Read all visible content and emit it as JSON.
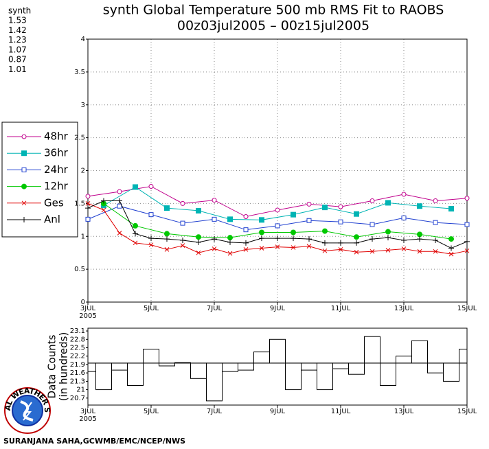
{
  "chart_data": [
    {
      "type": "line",
      "title": "synth Global Temperature 500 mb RMS Fit to RAOBS",
      "subtitle": "00z03jul2005 – 00z15jul2005",
      "model": "synth",
      "x_year_label": "2005",
      "xlim": [
        0,
        12
      ],
      "xticks": [
        {
          "value": 0,
          "label": "3JUL"
        },
        {
          "value": 2,
          "label": "5JUL"
        },
        {
          "value": 4,
          "label": "7JUL"
        },
        {
          "value": 6,
          "label": "9JUL"
        },
        {
          "value": 8,
          "label": "11JUL"
        },
        {
          "value": 10,
          "label": "13JUL"
        },
        {
          "value": 12,
          "label": "15JUL"
        }
      ],
      "ylim": [
        0,
        4
      ],
      "yticks": [
        0,
        0.5,
        1,
        1.5,
        2,
        2.5,
        3,
        3.5,
        4
      ],
      "grid": true,
      "series": [
        {
          "name": "48hr",
          "color": "#c0008c",
          "marker": "circle-open",
          "mean": 1.53,
          "x": [
            0,
            1,
            2,
            3,
            4,
            5,
            6,
            7,
            8,
            9,
            10,
            11,
            12
          ],
          "values": [
            1.61,
            1.68,
            1.76,
            1.5,
            1.55,
            1.3,
            1.4,
            1.49,
            1.45,
            1.54,
            1.64,
            1.54,
            1.58
          ]
        },
        {
          "name": "36hr",
          "color": "#00b4b4",
          "marker": "square-filled",
          "mean": 1.42,
          "x": [
            0.5,
            1.5,
            2.5,
            3.5,
            4.5,
            5.5,
            6.5,
            7.5,
            8.5,
            9.5,
            10.5,
            11.5
          ],
          "values": [
            1.47,
            1.75,
            1.43,
            1.39,
            1.26,
            1.25,
            1.33,
            1.44,
            1.34,
            1.51,
            1.46,
            1.42
          ]
        },
        {
          "name": "24hr",
          "color": "#2040d0",
          "marker": "square-open",
          "mean": 1.23,
          "x": [
            0,
            1,
            2,
            3,
            4,
            5,
            6,
            7,
            8,
            9,
            10,
            11,
            12
          ],
          "values": [
            1.26,
            1.46,
            1.33,
            1.2,
            1.26,
            1.1,
            1.16,
            1.24,
            1.22,
            1.18,
            1.28,
            1.21,
            1.18
          ]
        },
        {
          "name": "12hr",
          "color": "#00c800",
          "marker": "circle-filled",
          "mean": 1.07,
          "x": [
            0.5,
            1.5,
            2.5,
            3.5,
            4.5,
            5.5,
            6.5,
            7.5,
            8.5,
            9.5,
            10.5,
            11.5
          ],
          "values": [
            1.5,
            1.16,
            1.04,
            0.99,
            0.98,
            1.06,
            1.06,
            1.08,
            0.99,
            1.07,
            1.03,
            0.96
          ]
        },
        {
          "name": "Ges",
          "color": "#e00000",
          "marker": "x",
          "mean": 0.87,
          "x": [
            0,
            0.5,
            1,
            1.5,
            2,
            2.5,
            3,
            3.5,
            4,
            4.5,
            5,
            5.5,
            6,
            6.5,
            7,
            7.5,
            8,
            8.5,
            9,
            9.5,
            10,
            10.5,
            11,
            11.5,
            12
          ],
          "values": [
            1.5,
            1.4,
            1.05,
            0.9,
            0.87,
            0.8,
            0.86,
            0.75,
            0.81,
            0.74,
            0.8,
            0.82,
            0.84,
            0.83,
            0.85,
            0.78,
            0.8,
            0.76,
            0.77,
            0.79,
            0.81,
            0.77,
            0.77,
            0.73,
            0.78
          ]
        },
        {
          "name": "Anl",
          "color": "#000000",
          "marker": "plus",
          "mean": 1.01,
          "x": [
            0,
            0.5,
            1,
            1.5,
            2,
            2.5,
            3,
            3.5,
            4,
            4.5,
            5,
            5.5,
            6,
            6.5,
            7,
            7.5,
            8,
            8.5,
            9,
            9.5,
            10,
            10.5,
            11,
            11.5,
            12
          ],
          "values": [
            1.43,
            1.54,
            1.54,
            1.04,
            0.97,
            0.96,
            0.94,
            0.91,
            0.96,
            0.91,
            0.9,
            0.97,
            0.97,
            0.97,
            0.96,
            0.9,
            0.9,
            0.9,
            0.96,
            0.98,
            0.94,
            0.96,
            0.94,
            0.82,
            0.92
          ]
        }
      ]
    },
    {
      "type": "step",
      "y_label": "Data Counts",
      "y_label2": "(in hundreds)",
      "x_year_label": "2005",
      "xlim": [
        0,
        12
      ],
      "xticks": [
        {
          "value": 0,
          "label": "3JUL"
        },
        {
          "value": 2,
          "label": "5JUL"
        },
        {
          "value": 4,
          "label": "7JUL"
        },
        {
          "value": 6,
          "label": "9JUL"
        },
        {
          "value": 8,
          "label": "11JUL"
        },
        {
          "value": 10,
          "label": "13JUL"
        },
        {
          "value": 12,
          "label": "15JUL"
        }
      ],
      "ylim": [
        20.45,
        23.2
      ],
      "yticks": [
        20.7,
        21,
        21.3,
        21.6,
        21.9,
        22.2,
        22.5,
        22.8,
        23.1
      ],
      "baseline": 21.95,
      "x": [
        0,
        0.5,
        1,
        1.5,
        2,
        2.5,
        3,
        3.5,
        4,
        4.5,
        5,
        5.5,
        6,
        6.5,
        7,
        7.5,
        8,
        8.5,
        9,
        9.5,
        10,
        10.5,
        11,
        11.5,
        12
      ],
      "values": [
        21.65,
        21.0,
        21.7,
        21.15,
        22.45,
        21.85,
        21.97,
        21.4,
        20.6,
        21.65,
        21.7,
        22.35,
        22.8,
        21.0,
        21.7,
        21.0,
        21.75,
        21.55,
        22.9,
        21.15,
        22.2,
        22.75,
        21.6,
        21.3,
        22.45
      ],
      "color": "#000000"
    }
  ],
  "footer": "SURANJANA SAHA,GCWMB/EMC/NCEP/NWS",
  "logo": {
    "text": "NATIONAL WEATHER SERVICE"
  }
}
